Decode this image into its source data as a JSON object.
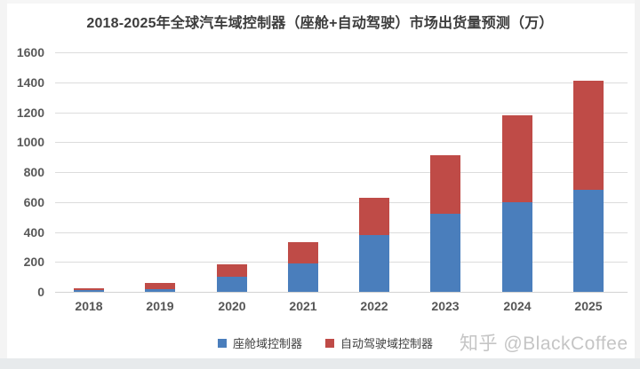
{
  "page": {
    "watermark": "知乎 @BlackCoffee"
  },
  "chart_data": {
    "type": "bar",
    "stacked": true,
    "title": "2018-2025年全球汽车域控制器（座舱+自动驾驶）市场出货量预测（万）",
    "categories": [
      "2018",
      "2019",
      "2020",
      "2021",
      "2022",
      "2023",
      "2024",
      "2025"
    ],
    "series": [
      {
        "name": "座舱域控制器",
        "color": "#4a7ebc",
        "values": [
          10,
          20,
          100,
          190,
          380,
          520,
          600,
          680
        ]
      },
      {
        "name": "自动驾驶域控制器",
        "color": "#bf4b47",
        "values": [
          10,
          40,
          80,
          145,
          250,
          390,
          580,
          730
        ]
      }
    ],
    "totals": [
      20,
      60,
      180,
      335,
      630,
      910,
      1180,
      1410
    ],
    "xlabel": "",
    "ylabel": "",
    "unit": "万",
    "ylim": [
      0,
      1600
    ],
    "ytick_step": 200,
    "grid": true,
    "legend_position": "bottom"
  }
}
